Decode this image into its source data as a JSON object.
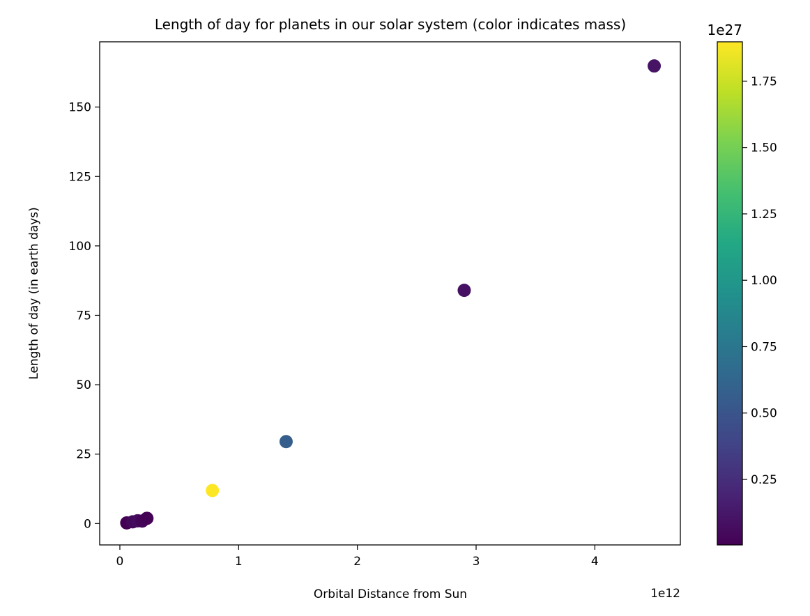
{
  "chart_data": {
    "type": "scatter",
    "title": "Length of day for planets in our solar system (color indicates mass)",
    "xlabel": "Orbital Distance from Sun",
    "ylabel": "Length of day (in earth days)",
    "x_offset_label": "1e12",
    "colorbar_offset_label": "1e27",
    "xlim": [
      -0.17,
      4.72
    ],
    "ylim": [
      -7.7,
      173.5
    ],
    "xticks": [
      0,
      1,
      2,
      3,
      4
    ],
    "yticks": [
      0,
      25,
      50,
      75,
      100,
      125,
      150
    ],
    "x_tick_labels": [
      "0",
      "1",
      "2",
      "3",
      "4"
    ],
    "y_tick_labels": [
      "0",
      "25",
      "50",
      "75",
      "100",
      "125",
      "150"
    ],
    "colorbar": {
      "colormap": "viridis",
      "range": [
        0.0033,
        1.898
      ],
      "ticks": [
        0.25,
        0.5,
        0.75,
        1.0,
        1.25,
        1.5,
        1.75
      ],
      "tick_labels": [
        "0.25",
        "0.50",
        "0.75",
        "1.00",
        "1.25",
        "1.50",
        "1.75"
      ]
    },
    "points": [
      {
        "x": 0.058,
        "y": 0.24,
        "mass": 0.0033
      },
      {
        "x": 0.108,
        "y": 0.62,
        "mass": 0.0487
      },
      {
        "x": 0.15,
        "y": 1.0,
        "mass": 0.0597
      },
      {
        "x": 0.188,
        "y": 0.9,
        "mass": 0.02
      },
      {
        "x": 0.228,
        "y": 1.88,
        "mass": 0.0064
      },
      {
        "x": 0.779,
        "y": 11.9,
        "mass": 1.898
      },
      {
        "x": 1.4,
        "y": 29.5,
        "mass": 0.568
      },
      {
        "x": 2.9,
        "y": 84.0,
        "mass": 0.0868
      },
      {
        "x": 4.5,
        "y": 164.8,
        "mass": 0.102
      }
    ]
  }
}
